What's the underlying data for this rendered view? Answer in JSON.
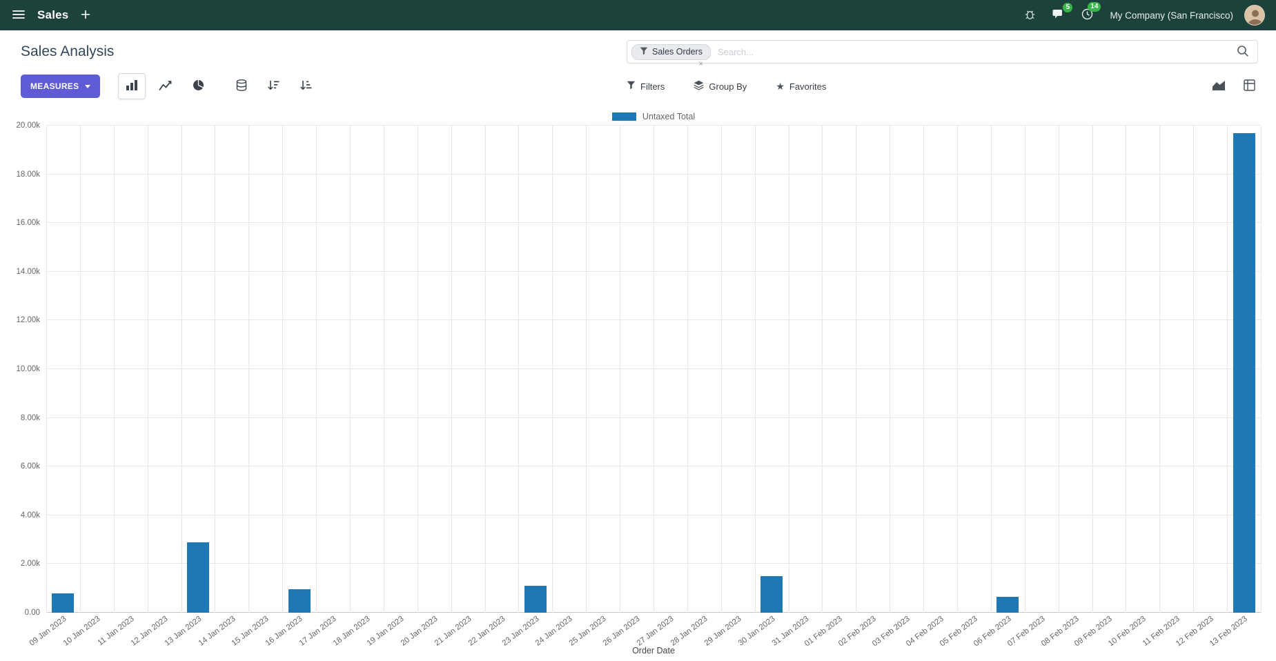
{
  "colors": {
    "navbar_bg": "#1d423c",
    "primary_button": "#5f5bd4",
    "bar": "#1f77b4",
    "badge": "#38b44a"
  },
  "navbar": {
    "app_name": "Sales",
    "company_name": "My Company (San Francisco)",
    "message_badge": "5",
    "activity_badge": "14"
  },
  "control_panel": {
    "title": "Sales Analysis",
    "measures_button": "MEASURES",
    "search": {
      "facet_label": "Sales Orders",
      "facet_remove": "×",
      "placeholder": "Search..."
    },
    "filters_label": "Filters",
    "group_by_label": "Group By",
    "favorites_label": "Favorites"
  },
  "chart_data": {
    "type": "bar",
    "title": "",
    "xlabel": "Order Date",
    "ylabel": "",
    "ylim": [
      0,
      20000
    ],
    "grid": true,
    "legend_position": "top",
    "yticks": [
      "0.00",
      "2.00k",
      "4.00k",
      "6.00k",
      "8.00k",
      "10.00k",
      "12.00k",
      "14.00k",
      "16.00k",
      "18.00k",
      "20.00k"
    ],
    "categories": [
      "09 Jan 2023",
      "10 Jan 2023",
      "11 Jan 2023",
      "12 Jan 2023",
      "13 Jan 2023",
      "14 Jan 2023",
      "15 Jan 2023",
      "16 Jan 2023",
      "17 Jan 2023",
      "18 Jan 2023",
      "19 Jan 2023",
      "20 Jan 2023",
      "21 Jan 2023",
      "22 Jan 2023",
      "23 Jan 2023",
      "24 Jan 2023",
      "25 Jan 2023",
      "26 Jan 2023",
      "27 Jan 2023",
      "28 Jan 2023",
      "29 Jan 2023",
      "30 Jan 2023",
      "31 Jan 2023",
      "01 Feb 2023",
      "02 Feb 2023",
      "03 Feb 2023",
      "04 Feb 2023",
      "05 Feb 2023",
      "06 Feb 2023",
      "07 Feb 2023",
      "08 Feb 2023",
      "09 Feb 2023",
      "10 Feb 2023",
      "11 Feb 2023",
      "12 Feb 2023",
      "13 Feb 2023"
    ],
    "series": [
      {
        "name": "Untaxed Total",
        "color": "#1f77b4",
        "values": [
          800,
          0,
          0,
          0,
          2900,
          0,
          0,
          950,
          0,
          0,
          0,
          0,
          0,
          0,
          1100,
          0,
          0,
          0,
          0,
          0,
          0,
          1500,
          0,
          0,
          0,
          0,
          0,
          0,
          650,
          0,
          0,
          0,
          0,
          0,
          0,
          19700
        ]
      }
    ]
  }
}
